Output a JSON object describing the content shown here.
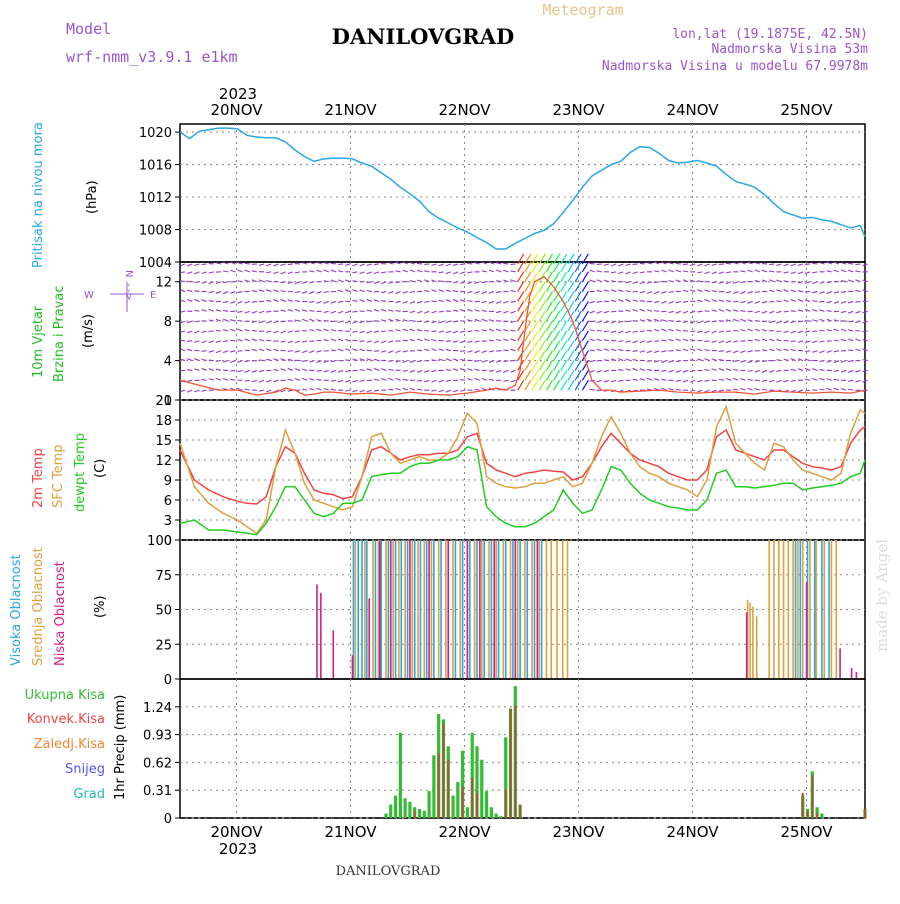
{
  "header": {
    "model_label": "Model",
    "model_name": "wrf-nmm_v3.9.1 e1km",
    "title": "DANILOVGRAD",
    "meteogram_label": "Meteogram",
    "lonlat": "lon,lat (19.1875E, 42.5N)",
    "elevation": "Nadmorska Visina 53m",
    "model_elevation": "Nadmorska Visina u modelu 67.9978m",
    "footer_title": "DANILOVGRAD",
    "watermark": "made by Angel"
  },
  "colors": {
    "pressure": "#2aa7e6",
    "temp2m": "#ee4444",
    "sfctemp": "#dda040",
    "dewpt": "#22cc22",
    "cloud_high": "#2aa7e6",
    "cloud_mid": "#dda040",
    "cloud_low": "#cc2288",
    "precip_total": "#33bb33",
    "precip_conv": "#ee4444",
    "precip_frz": "#ee8833",
    "precip_snow": "#5555ee",
    "precip_grad": "#22bbbb",
    "wind_barbs": "#9933cc",
    "wind_speed": "#ee5533",
    "violet": "#9a55cc"
  },
  "time_axis": {
    "year": "2023",
    "days": [
      "20NOV",
      "21NOV",
      "22NOV",
      "23NOV",
      "24NOV",
      "25NOV"
    ]
  },
  "panels": {
    "pressure": {
      "label": "Pritisak na nivou mora",
      "unit": "(hPa)"
    },
    "wind": {
      "label1": "10m Vjetar",
      "label2": "Brzina i Pravac",
      "unit": "(m/s)",
      "compass_n": "N",
      "compass_w": "W",
      "compass_e": "E",
      "compass_dash": "-->"
    },
    "temp": {
      "label1": "2m Temp",
      "label2": "SFC Temp",
      "label3": "dewpt Temp",
      "unit": "(C)"
    },
    "cloud": {
      "label1": "Visoka Oblacnost",
      "label2": "Srednja Oblacnost",
      "label3": "Niska Oblacnost",
      "unit": "(%)"
    },
    "precip": {
      "labels": [
        "Ukupna Kisa",
        "Konvek.Kisa",
        "Zaledj.Kisa",
        "Snijeg",
        "Grad"
      ],
      "unit": "1hr Precip (mm)"
    }
  },
  "chart_data": [
    {
      "type": "line",
      "title": "Pritisak na nivou mora",
      "ylabel": "(hPa)",
      "ylim": [
        1004,
        1021
      ],
      "yticks": [
        1004,
        1008,
        1012,
        1016,
        1020
      ],
      "x_unit": "hours from 19NOV 12UTC",
      "series": [
        {
          "name": "Pritisak na nivou mora",
          "x": [
            0,
            2,
            4,
            6,
            8,
            10,
            12,
            14,
            16,
            18,
            20,
            22,
            24,
            26,
            28,
            30,
            32,
            34,
            36,
            38,
            40,
            42,
            44,
            46,
            48,
            50,
            52,
            54,
            56,
            58,
            60,
            62,
            64,
            66,
            68,
            70,
            72,
            74,
            76,
            78,
            80,
            82,
            84,
            86,
            88,
            90,
            92,
            94,
            96,
            98,
            100,
            102,
            104,
            106,
            108,
            110,
            112,
            114,
            116,
            118,
            120,
            122,
            124,
            126,
            128,
            130,
            132,
            134,
            136,
            138,
            140,
            142,
            143
          ],
          "values": [
            1020.0,
            1019.2,
            1020.1,
            1020.3,
            1020.5,
            1020.5,
            1020.4,
            1019.6,
            1019.4,
            1019.3,
            1019.3,
            1018.8,
            1017.8,
            1017.0,
            1016.4,
            1016.7,
            1016.8,
            1016.8,
            1016.7,
            1016.2,
            1015.8,
            1015.0,
            1014.2,
            1013.2,
            1012.4,
            1011.5,
            1010.2,
            1009.4,
            1008.8,
            1008.2,
            1007.7,
            1007.0,
            1006.4,
            1005.6,
            1005.6,
            1006.3,
            1006.9,
            1007.5,
            1007.9,
            1008.7,
            1010.1,
            1011.6,
            1013.2,
            1014.6,
            1015.3,
            1016.0,
            1016.4,
            1017.5,
            1018.2,
            1018.1,
            1017.4,
            1016.5,
            1016.2,
            1016.3,
            1016.5,
            1016.2,
            1015.8,
            1014.8,
            1013.9,
            1013.6,
            1013.2,
            1012.3,
            1011.2,
            1010.2,
            1009.8,
            1009.4,
            1009.5,
            1009.2,
            1009.0,
            1008.6,
            1008.2,
            1008.5,
            1007.1
          ]
        }
      ]
    },
    {
      "type": "line",
      "title": "10m Vjetar Brzina i Pravac",
      "ylabel": "(m/s)",
      "ylim": [
        0,
        14
      ],
      "yticks": [
        0,
        4,
        8,
        12
      ],
      "x_unit": "hours from 19NOV 12UTC",
      "series": [
        {
          "name": "10m Vjetar Brzina i Pravac",
          "x": [
            0,
            4,
            8,
            12,
            16,
            20,
            22,
            24,
            26,
            28,
            30,
            32,
            36,
            40,
            44,
            48,
            52,
            56,
            60,
            64,
            66,
            68,
            70,
            71,
            72,
            73,
            74,
            76,
            78,
            80,
            82,
            84,
            86,
            88,
            90,
            92,
            96,
            100,
            104,
            108,
            112,
            116,
            120,
            124,
            128,
            132,
            136,
            140,
            143
          ],
          "values": [
            2.0,
            1.5,
            1.0,
            1.0,
            0.5,
            0.8,
            1.2,
            1.0,
            0.5,
            0.6,
            0.8,
            0.8,
            0.6,
            0.7,
            0.5,
            0.8,
            0.6,
            0.5,
            0.7,
            1.0,
            1.2,
            1.0,
            1.5,
            3.0,
            7.0,
            10.5,
            12.0,
            12.5,
            11.5,
            10.0,
            8.0,
            5.0,
            2.0,
            1.0,
            1.0,
            0.8,
            0.9,
            1.0,
            0.8,
            0.7,
            0.8,
            0.8,
            0.6,
            0.9,
            0.8,
            0.7,
            0.8,
            0.7,
            1.0
          ]
        }
      ]
    },
    {
      "type": "line",
      "title": "2m Temp, SFC Temp, dewpt Temp",
      "ylabel": "(C)",
      "ylim": [
        0,
        21
      ],
      "yticks": [
        0,
        3,
        6,
        9,
        12,
        15,
        18,
        21
      ],
      "x_unit": "hours from 19NOV 12UTC",
      "x": [
        0,
        3,
        6,
        9,
        12,
        14,
        16,
        18,
        20,
        22,
        24,
        26,
        28,
        30,
        32,
        34,
        36,
        38,
        40,
        42,
        44,
        46,
        48,
        50,
        52,
        54,
        56,
        58,
        60,
        62,
        64,
        66,
        68,
        70,
        72,
        74,
        76,
        78,
        80,
        82,
        84,
        86,
        88,
        90,
        92,
        94,
        96,
        98,
        100,
        102,
        104,
        106,
        108,
        110,
        112,
        114,
        116,
        118,
        120,
        122,
        124,
        126,
        128,
        130,
        132,
        134,
        136,
        138,
        140,
        142,
        143
      ],
      "series": [
        {
          "name": "2m Temp",
          "values": [
            13.5,
            9.0,
            7.5,
            6.5,
            5.8,
            5.5,
            5.4,
            6.5,
            11.0,
            14.0,
            13.0,
            10.0,
            7.5,
            7.0,
            6.8,
            6.2,
            6.5,
            9.5,
            13.5,
            14.0,
            13.0,
            12.0,
            12.5,
            12.8,
            12.8,
            13.0,
            13.0,
            13.5,
            15.5,
            16.0,
            11.5,
            10.5,
            10.0,
            9.5,
            10.0,
            10.2,
            10.5,
            10.3,
            10.2,
            9.0,
            9.5,
            11.5,
            14.0,
            16.0,
            14.5,
            13.0,
            12.0,
            11.5,
            11.0,
            10.0,
            9.5,
            9.0,
            9.0,
            10.5,
            15.5,
            16.5,
            13.5,
            13.0,
            12.5,
            12.0,
            13.5,
            13.5,
            12.5,
            11.5,
            11.0,
            10.8,
            10.5,
            11.0,
            14.5,
            16.5,
            17.0
          ]
        },
        {
          "name": "SFC Temp",
          "values": [
            14.5,
            8.0,
            5.5,
            4.0,
            3.0,
            2.0,
            1.0,
            3.0,
            11.0,
            16.5,
            13.0,
            8.5,
            6.0,
            5.5,
            5.0,
            4.5,
            5.0,
            9.5,
            15.5,
            16.0,
            13.0,
            11.5,
            12.0,
            12.5,
            12.0,
            12.0,
            13.0,
            15.5,
            19.0,
            17.5,
            9.5,
            8.5,
            8.0,
            7.8,
            8.0,
            8.5,
            8.5,
            9.0,
            9.5,
            8.0,
            8.5,
            11.5,
            15.5,
            18.5,
            16.0,
            13.0,
            11.0,
            10.0,
            9.5,
            8.5,
            8.0,
            7.5,
            6.5,
            9.0,
            17.0,
            20.0,
            14.5,
            13.0,
            11.5,
            10.5,
            14.5,
            14.0,
            12.0,
            10.5,
            10.0,
            9.5,
            9.0,
            10.0,
            16.0,
            19.5,
            19.0
          ]
        },
        {
          "name": "dewpt Temp",
          "values": [
            2.5,
            3.0,
            1.5,
            1.5,
            1.2,
            1.0,
            0.8,
            2.5,
            5.0,
            8.0,
            8.0,
            6.0,
            4.0,
            3.5,
            4.0,
            5.5,
            5.5,
            6.0,
            9.5,
            9.8,
            10.0,
            10.0,
            11.0,
            11.5,
            11.5,
            12.0,
            12.0,
            12.5,
            14.0,
            13.5,
            5.0,
            3.5,
            2.5,
            2.0,
            2.0,
            2.5,
            3.5,
            4.5,
            7.5,
            5.5,
            4.0,
            4.5,
            7.5,
            11.0,
            10.5,
            8.5,
            7.0,
            6.0,
            5.5,
            5.0,
            4.8,
            4.5,
            4.5,
            6.0,
            10.0,
            10.5,
            8.0,
            8.0,
            7.8,
            8.0,
            8.2,
            8.5,
            8.5,
            7.5,
            7.8,
            8.0,
            8.2,
            8.5,
            9.5,
            10.0,
            12.0
          ]
        }
      ]
    },
    {
      "type": "bar",
      "title": "Visoka Oblacnost, Srednja Oblacnost, Niska Oblacnost",
      "ylabel": "(%)",
      "ylim": [
        0,
        100
      ],
      "yticks": [
        0,
        25,
        50,
        75,
        100
      ],
      "x_unit": "hours from 19NOV 12UTC",
      "series": [
        {
          "name": "Visoka Oblacnost",
          "x": [
            36.2,
            37.2,
            38.0,
            39.0,
            40.8,
            42.0,
            43.5,
            45.0,
            46.2,
            47.5,
            49.0,
            50.2,
            51.5,
            53.0,
            54.5,
            56.0,
            57.5,
            59.0,
            60.5,
            62.0,
            63.5,
            65.0,
            66.5,
            68.0,
            69.5,
            71.0,
            72.5,
            74.0,
            75.5,
            128.5,
            129.5,
            131.0,
            132.5,
            134.0,
            135.5
          ],
          "values": [
            100,
            100,
            100,
            100,
            100,
            100,
            100,
            100,
            100,
            100,
            100,
            100,
            100,
            100,
            100,
            100,
            100,
            100,
            100,
            100,
            100,
            100,
            100,
            100,
            100,
            100,
            100,
            100,
            100,
            100,
            100,
            100,
            100,
            100,
            100
          ]
        },
        {
          "name": "Srednja Oblacnost",
          "x": [
            36.6,
            38.6,
            40.3,
            41.4,
            43.0,
            44.5,
            45.7,
            47.0,
            48.5,
            49.7,
            51.0,
            52.5,
            54.0,
            55.5,
            57.0,
            58.5,
            60.0,
            61.5,
            63.0,
            64.5,
            66.0,
            67.5,
            69.0,
            70.5,
            72.0,
            73.5,
            75.0,
            76.5,
            77.5,
            78.7,
            79.9,
            80.9,
            118.5,
            119.0,
            119.6,
            120.4,
            123.0,
            124.0,
            125.0,
            126.0,
            127.0,
            128.0,
            129.0,
            130.0,
            131.5,
            132.8,
            134.5,
            136.0,
            137.0
          ],
          "values": [
            100,
            100,
            100,
            100,
            100,
            100,
            100,
            100,
            100,
            100,
            100,
            100,
            100,
            100,
            100,
            100,
            100,
            100,
            100,
            100,
            100,
            100,
            100,
            100,
            100,
            100,
            100,
            100,
            100,
            100,
            100,
            100,
            57,
            55,
            52,
            45,
            100,
            100,
            100,
            100,
            100,
            100,
            100,
            100,
            100,
            100,
            100,
            100,
            100
          ]
        },
        {
          "name": "Niska Oblacnost",
          "x": [
            28.6,
            29.4,
            32.0,
            36.0,
            39.5,
            41.7,
            44.0,
            48.0,
            52.0,
            56.0,
            60.0,
            62.6,
            65.6,
            70.0,
            74.6,
            118.3,
            130.8,
            137.8,
            140.2,
            141.2
          ],
          "values": [
            68,
            62,
            35,
            17,
            58,
            100,
            100,
            100,
            100,
            100,
            100,
            100,
            100,
            100,
            100,
            48,
            70,
            22,
            8,
            5
          ]
        }
      ]
    },
    {
      "type": "bar",
      "title": "1hr Precip (mm)",
      "ylabel": "1hr Precip (mm)",
      "ylim": [
        0,
        1.55
      ],
      "yticks": [
        0,
        0.31,
        0.62,
        0.93,
        1.24
      ],
      "x_unit": "hours from 19NOV 12UTC",
      "series": [
        {
          "name": "Ukupna Kisa",
          "x": [
            43,
            44,
            45,
            46,
            47,
            48,
            49,
            50,
            51,
            52,
            53,
            54,
            55,
            56,
            57,
            58,
            59,
            60,
            61,
            62,
            63,
            64,
            65,
            66,
            67,
            68,
            69,
            70,
            71,
            130,
            131,
            132,
            133,
            134,
            143
          ],
          "values": [
            0.05,
            0.15,
            0.25,
            0.95,
            0.22,
            0.18,
            0.12,
            0.1,
            0.08,
            0.3,
            0.7,
            1.16,
            1.1,
            0.8,
            0.25,
            0.4,
            0.75,
            0.12,
            0.95,
            0.8,
            0.65,
            0.3,
            0.12,
            0.05,
            0.02,
            0.9,
            1.22,
            1.47,
            0.15,
            0.25,
            0.1,
            0.52,
            0.12,
            0.05,
            0.1
          ]
        },
        {
          "name": "Konvek.Kisa",
          "x": [
            49,
            54,
            55,
            56,
            59,
            61,
            62,
            68,
            69,
            70,
            71,
            130,
            131,
            132,
            133,
            143
          ],
          "values": [
            0.08,
            0.72,
            1.05,
            0.65,
            0.35,
            0.45,
            0.28,
            0.32,
            1.22,
            1.25,
            0.15,
            0.28,
            0.08,
            0.48,
            0.05,
            0.1
          ]
        }
      ]
    }
  ]
}
